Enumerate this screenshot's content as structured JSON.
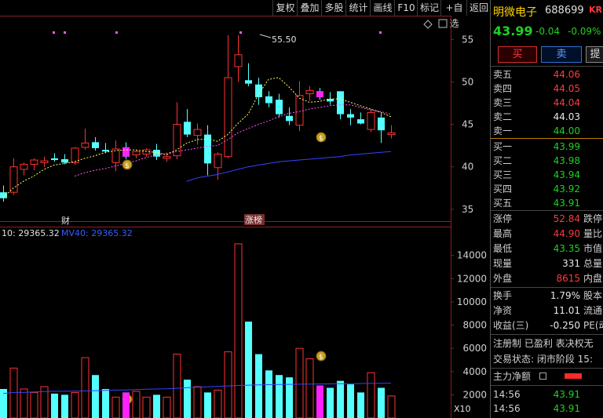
{
  "toolbar": {
    "buttons": [
      "复权",
      "叠加",
      "多股",
      "统计",
      "画线",
      "F10",
      "标记",
      "+自选",
      "返回"
    ]
  },
  "stock": {
    "name": "明微电子",
    "code": "688699",
    "flag": "KR",
    "price": "43.99",
    "change": "-0.04",
    "change_pct": "-0.09%",
    "buy_label": "买",
    "sell_label": "卖",
    "extra_label": "提"
  },
  "orderbook": {
    "asks": [
      {
        "label": "卖五",
        "price": "44.06"
      },
      {
        "label": "卖四",
        "price": "44.05"
      },
      {
        "label": "卖三",
        "price": "44.04"
      },
      {
        "label": "卖二",
        "price": "44.03"
      },
      {
        "label": "卖一",
        "price": "44.00"
      }
    ],
    "bids": [
      {
        "label": "买一",
        "price": "43.99"
      },
      {
        "label": "买二",
        "price": "43.98"
      },
      {
        "label": "买三",
        "price": "43.94"
      },
      {
        "label": "买四",
        "price": "43.92"
      },
      {
        "label": "买五",
        "price": "43.91"
      }
    ]
  },
  "quote": [
    {
      "label": "涨停",
      "value": "52.84",
      "extra": "跌停",
      "color": "red"
    },
    {
      "label": "最高",
      "value": "44.90",
      "extra": "量比",
      "color": "red"
    },
    {
      "label": "最低",
      "value": "43.35",
      "extra": "市值",
      "color": "green"
    },
    {
      "label": "现量",
      "value": "331",
      "extra": "总量",
      "color": "white"
    },
    {
      "label": "外盘",
      "value": "8615",
      "extra": "内盘",
      "color": "red"
    }
  ],
  "stats": [
    {
      "label": "换手",
      "value": "1.79%",
      "extra": "股本"
    },
    {
      "label": "净资",
      "value": "11.01",
      "extra": "流通"
    },
    {
      "label": "收益(三)",
      "value": "-0.250",
      "extra": "PE(动"
    }
  ],
  "info": {
    "line1": "注册制 已盈利 表决权无",
    "line2": "交易状态: 闭市阶段 15:",
    "capital_flow": "主力净额"
  },
  "ticks": [
    {
      "time": "14:56",
      "price": "43.91"
    },
    {
      "time": "14:56",
      "price": "43.91"
    }
  ],
  "chart_data": {
    "type": "candlestick",
    "price_axis": {
      "ticks": [
        35.0,
        40.0,
        45.0,
        50.0,
        55.0
      ],
      "range": [
        33.6,
        57.8
      ]
    },
    "volume_axis": {
      "ticks": [
        2000,
        4000,
        6000,
        8000,
        10000,
        12000,
        14000
      ],
      "range": [
        0,
        15400
      ]
    },
    "max_label": "55.50",
    "volume_ma_text": "10: 29365.32",
    "volume_ma_text2": "MV40: 29365.32",
    "volume_unit": "X10",
    "markers": {
      "event1": "财",
      "event2": "涨榜"
    },
    "colors": {
      "up": "#ff3232",
      "down": "#54ffff",
      "ma5": "#ffff55",
      "ma10": "#ff55ff",
      "ma20": "#3344ff",
      "vol_ma": "#3344ff"
    },
    "candles": [
      {
        "o": 37.0,
        "h": 37.8,
        "l": 35.9,
        "c": 36.3
      },
      {
        "o": 37.0,
        "h": 41.0,
        "l": 36.7,
        "c": 40.0
      },
      {
        "o": 39.7,
        "h": 40.5,
        "l": 39.0,
        "c": 40.3
      },
      {
        "o": 40.3,
        "h": 41.0,
        "l": 39.6,
        "c": 40.8
      },
      {
        "o": 40.5,
        "h": 41.2,
        "l": 40.0,
        "c": 40.7
      },
      {
        "o": 41.0,
        "h": 41.6,
        "l": 40.6,
        "c": 40.8
      },
      {
        "o": 40.9,
        "h": 41.5,
        "l": 40.3,
        "c": 40.5
      },
      {
        "o": 40.5,
        "h": 42.3,
        "l": 40.2,
        "c": 42.2
      },
      {
        "o": 42.3,
        "h": 44.5,
        "l": 42.0,
        "c": 42.8
      },
      {
        "o": 42.9,
        "h": 43.5,
        "l": 41.9,
        "c": 42.2
      },
      {
        "o": 42.0,
        "h": 42.8,
        "l": 41.6,
        "c": 41.8
      },
      {
        "o": 40.5,
        "h": 43.1,
        "l": 39.5,
        "c": 42.1
      },
      {
        "o": 42.3,
        "h": 42.9,
        "l": 40.9,
        "c": 41.2
      },
      {
        "o": 41.4,
        "h": 42.0,
        "l": 41.0,
        "c": 41.8
      },
      {
        "o": 41.5,
        "h": 42.2,
        "l": 41.2,
        "c": 42.0
      },
      {
        "o": 42.0,
        "h": 42.7,
        "l": 40.8,
        "c": 41.2
      },
      {
        "o": 41.0,
        "h": 41.6,
        "l": 40.6,
        "c": 41.2
      },
      {
        "o": 41.3,
        "h": 47.6,
        "l": 40.9,
        "c": 45.0
      },
      {
        "o": 45.3,
        "h": 46.8,
        "l": 43.5,
        "c": 43.8
      },
      {
        "o": 43.7,
        "h": 45.1,
        "l": 42.6,
        "c": 44.4
      },
      {
        "o": 43.8,
        "h": 44.9,
        "l": 39.0,
        "c": 40.4
      },
      {
        "o": 39.9,
        "h": 41.7,
        "l": 38.5,
        "c": 41.5
      },
      {
        "o": 41.2,
        "h": 55.5,
        "l": 41.0,
        "c": 50.5
      },
      {
        "o": 51.8,
        "h": 55.5,
        "l": 50.0,
        "c": 53.2
      },
      {
        "o": 50.2,
        "h": 52.2,
        "l": 49.5,
        "c": 49.8
      },
      {
        "o": 49.7,
        "h": 50.5,
        "l": 47.3,
        "c": 48.2
      },
      {
        "o": 48.3,
        "h": 48.9,
        "l": 47.0,
        "c": 47.5
      },
      {
        "o": 47.9,
        "h": 48.6,
        "l": 45.8,
        "c": 46.2
      },
      {
        "o": 46.0,
        "h": 47.0,
        "l": 44.9,
        "c": 45.4
      },
      {
        "o": 44.9,
        "h": 50.1,
        "l": 44.2,
        "c": 48.4
      },
      {
        "o": 48.6,
        "h": 49.5,
        "l": 47.8,
        "c": 49.0
      },
      {
        "o": 48.9,
        "h": 49.3,
        "l": 47.9,
        "c": 48.2
      },
      {
        "o": 48.0,
        "h": 48.8,
        "l": 47.3,
        "c": 47.7
      },
      {
        "o": 48.9,
        "h": 48.9,
        "l": 45.6,
        "c": 46.2
      },
      {
        "o": 46.2,
        "h": 46.8,
        "l": 44.9,
        "c": 45.8
      },
      {
        "o": 45.6,
        "h": 46.4,
        "l": 45.0,
        "c": 45.1
      },
      {
        "o": 44.4,
        "h": 46.8,
        "l": 44.1,
        "c": 46.4
      },
      {
        "o": 45.8,
        "h": 46.3,
        "l": 42.8,
        "c": 44.3
      },
      {
        "o": 43.8,
        "h": 44.9,
        "l": 43.35,
        "c": 43.99
      }
    ],
    "ma5": [
      36.4,
      37.5,
      38.3,
      38.9,
      39.7,
      40.2,
      40.4,
      40.6,
      41.0,
      41.3,
      41.7,
      41.9,
      42.0,
      42.0,
      41.8,
      41.7,
      41.4,
      42.0,
      42.8,
      43.2,
      43.3,
      43.0,
      43.8,
      45.1,
      46.2,
      48.5,
      50.3,
      50.5,
      49.4,
      48.1,
      47.6,
      47.7,
      48.0,
      48.0,
      47.6,
      47.2,
      46.8,
      46.4,
      45.9
    ],
    "ma10": [
      null,
      null,
      null,
      null,
      null,
      null,
      null,
      38.9,
      39.3,
      39.6,
      39.8,
      40.1,
      40.4,
      40.7,
      41.1,
      41.4,
      41.6,
      41.8,
      42.0,
      42.2,
      42.4,
      42.5,
      43.2,
      44.0,
      44.5,
      45.0,
      45.4,
      45.9,
      46.3,
      46.5,
      46.8,
      47.0,
      47.2,
      47.3,
      47.3,
      47.0,
      46.7,
      46.5,
      46.2
    ],
    "ma20": [
      null,
      null,
      null,
      null,
      null,
      null,
      null,
      null,
      null,
      null,
      null,
      null,
      null,
      null,
      null,
      null,
      null,
      null,
      38.3,
      38.7,
      38.9,
      39.1,
      39.4,
      39.7,
      40.0,
      40.2,
      40.4,
      40.6,
      40.7,
      40.8,
      40.9,
      41.0,
      41.1,
      41.2,
      41.4,
      41.5,
      41.6,
      41.7,
      41.8
    ],
    "volumes": [
      2500,
      4300,
      2500,
      2200,
      2700,
      2100,
      2000,
      2200,
      5200,
      3700,
      2500,
      1800,
      2200,
      2300,
      1800,
      2000,
      1800,
      5500,
      3300,
      2700,
      2200,
      2400,
      5700,
      15000,
      8300,
      5500,
      4100,
      3700,
      3500,
      6000,
      5100,
      2800,
      2600,
      3200,
      2900,
      2200,
      3900,
      2600,
      1900
    ],
    "vol_ma": [
      2100,
      2200,
      2200,
      2250,
      2280,
      2300,
      2300,
      2310,
      2330,
      2360,
      2380,
      2400,
      2420,
      2450,
      2480,
      2500,
      2520,
      2560,
      2610,
      2650,
      2690,
      2720,
      2760,
      2800,
      2830,
      2850,
      2870,
      2890,
      2900,
      2910,
      2920,
      2930,
      2940,
      2950,
      2960,
      2970,
      2980,
      2990,
      3000
    ]
  }
}
